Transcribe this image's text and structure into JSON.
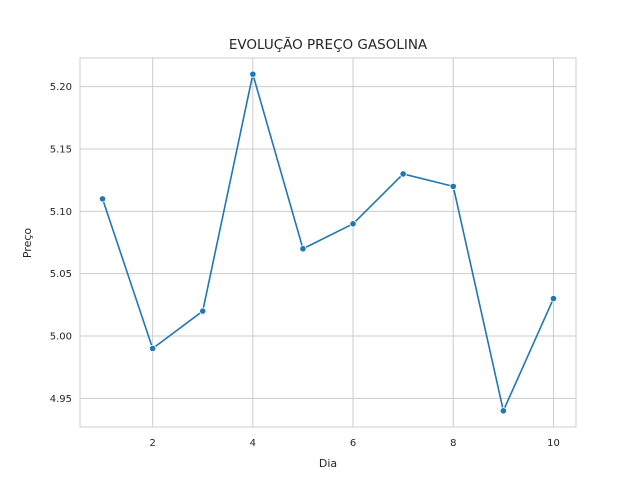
{
  "chart_data": {
    "type": "line",
    "title": "EVOLUÇÃO PREÇO GASOLINA",
    "xlabel": "Dia",
    "ylabel": "Preço",
    "x": [
      1,
      2,
      3,
      4,
      5,
      6,
      7,
      8,
      9,
      10
    ],
    "series": [
      {
        "values": [
          5.11,
          4.99,
          5.02,
          5.21,
          5.07,
          5.09,
          5.13,
          5.12,
          4.94,
          5.03
        ]
      }
    ],
    "xlim": [
      0.55,
      10.45
    ],
    "ylim": [
      4.927,
      5.223
    ],
    "xticks": [
      2,
      4,
      6,
      8,
      10
    ],
    "yticks": [
      4.95,
      5.0,
      5.05,
      5.1,
      5.15,
      5.2
    ],
    "ytick_labels": [
      "4.95",
      "5.00",
      "5.05",
      "5.10",
      "5.15",
      "5.20"
    ],
    "xtick_labels": [
      "2",
      "4",
      "6",
      "8",
      "10"
    ],
    "grid": true,
    "markers": true,
    "colors": {
      "line": "#1f77b4",
      "grid": "#cccccc",
      "axes": "#cccccc",
      "text": "#262626"
    }
  }
}
